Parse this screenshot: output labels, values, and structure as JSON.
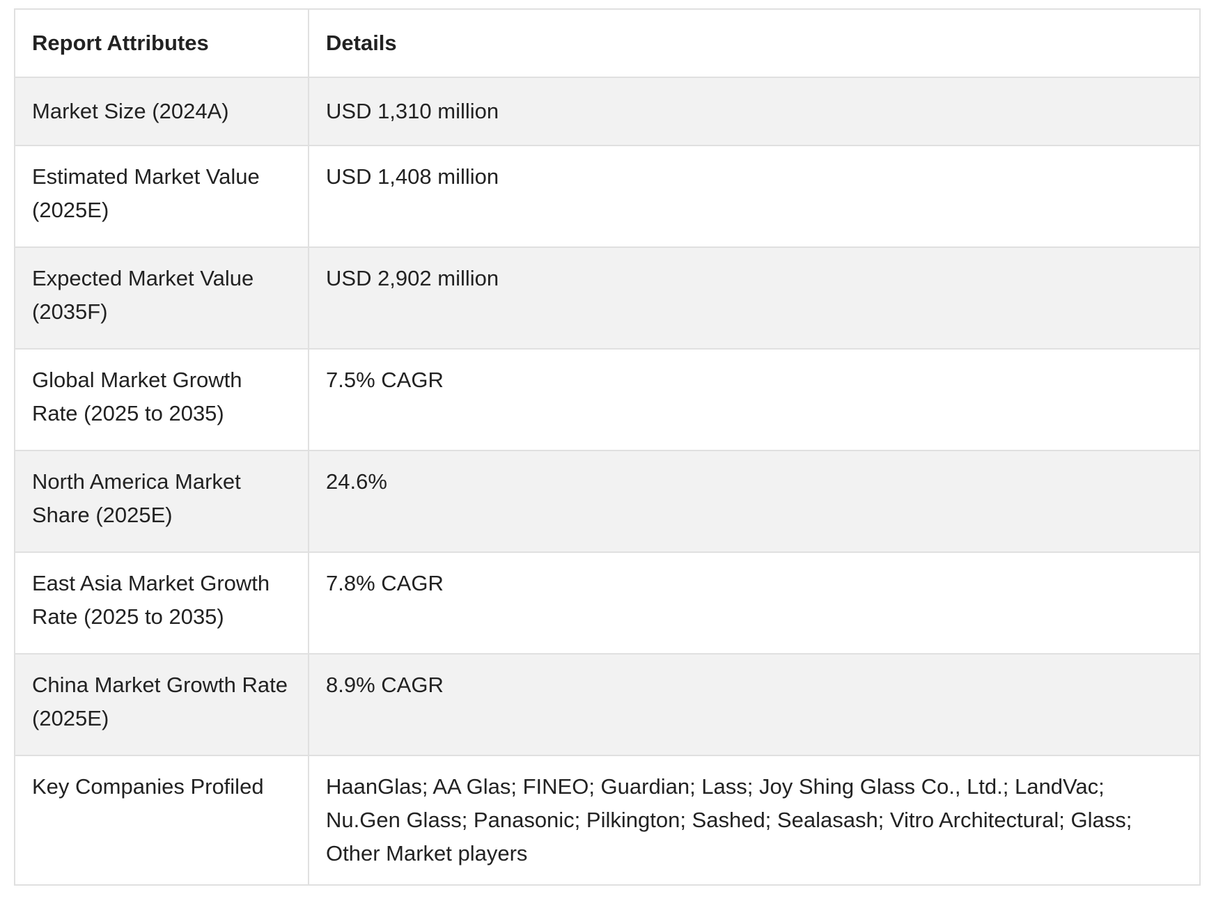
{
  "table": {
    "headers": [
      "Report Attributes",
      "Details"
    ],
    "rows": [
      {
        "attribute": "Market Size (2024A)",
        "detail": "USD 1,310 million"
      },
      {
        "attribute": "Estimated Market Value (2025E)",
        "detail": "USD 1,408 million"
      },
      {
        "attribute": "Expected Market Value (2035F)",
        "detail": "USD 2,902 million"
      },
      {
        "attribute": "Global Market Growth Rate (2025 to 2035)",
        "detail": "7.5% CAGR"
      },
      {
        "attribute": "North America Market Share (2025E)",
        "detail": "24.6%"
      },
      {
        "attribute": "East Asia Market Growth Rate (2025 to 2035)",
        "detail": "7.8% CAGR"
      },
      {
        "attribute": "China Market Growth Rate (2025E)",
        "detail": "8.9% CAGR"
      },
      {
        "attribute": "Key Companies Profiled",
        "detail": "HaanGlas; AA Glas; FINEO; Guardian; Lass; Joy Shing Glass Co., Ltd.; LandVac; Nu.Gen Glass; Panasonic; Pilkington; Sashed; Sealasash; Vitro Architectural; Glass; Other Market players"
      }
    ]
  }
}
